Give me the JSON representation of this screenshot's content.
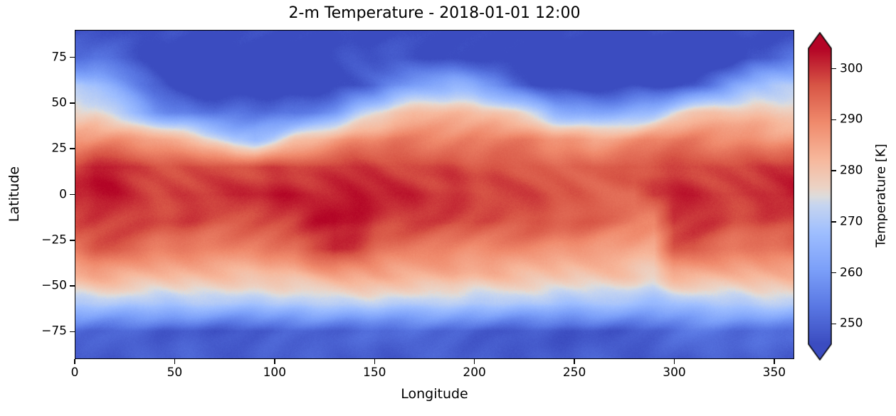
{
  "chart_data": {
    "type": "heatmap",
    "title": "2-m Temperature - 2018-01-01 12:00",
    "xlabel": "Longitude",
    "ylabel": "Latitude",
    "colorbar_label": "Temperature [K]",
    "xlim": [
      0,
      360
    ],
    "ylim": [
      -90,
      90
    ],
    "xticks": [
      0,
      50,
      100,
      150,
      200,
      250,
      300,
      350
    ],
    "yticks": [
      75,
      50,
      25,
      0,
      -25,
      -50,
      -75
    ],
    "colorbar_ticks": [
      250,
      260,
      270,
      280,
      290,
      300
    ],
    "vmin": 246,
    "vmax": 304,
    "colormap": "coolwarm",
    "extend": "both",
    "grid_lons": [
      0,
      10,
      20,
      30,
      40,
      50,
      60,
      70,
      80,
      90,
      100,
      110,
      120,
      130,
      140,
      150,
      160,
      170,
      180,
      190,
      200,
      210,
      220,
      230,
      240,
      250,
      260,
      270,
      280,
      290,
      300,
      310,
      320,
      330,
      340,
      350,
      360
    ],
    "grid_lats": [
      90,
      75,
      60,
      45,
      30,
      15,
      0,
      -15,
      -30,
      -45,
      -60,
      -75,
      -90
    ],
    "values": [
      [
        246,
        246,
        246,
        246,
        246,
        246,
        246,
        246,
        246,
        246,
        246,
        246,
        246,
        246,
        246,
        246,
        246,
        246,
        246,
        246,
        246,
        246,
        246,
        246,
        246,
        246,
        246,
        246,
        246,
        246,
        246,
        246,
        246,
        246,
        246,
        246,
        246
      ],
      [
        252,
        252,
        250,
        248,
        246,
        245,
        244,
        243,
        243,
        244,
        244,
        245,
        246,
        246,
        247,
        247,
        247,
        247,
        247,
        246,
        246,
        245,
        243,
        242,
        241,
        240,
        239,
        238,
        238,
        237,
        237,
        238,
        240,
        243,
        247,
        250,
        252
      ],
      [
        270,
        268,
        262,
        256,
        250,
        245,
        243,
        241,
        240,
        240,
        241,
        242,
        243,
        245,
        247,
        250,
        256,
        261,
        264,
        265,
        263,
        258,
        250,
        246,
        244,
        243,
        243,
        244,
        245,
        244,
        245,
        248,
        255,
        262,
        268,
        270,
        270
      ],
      [
        278,
        277,
        272,
        266,
        260,
        256,
        254,
        253,
        253,
        252,
        251,
        252,
        255,
        260,
        268,
        274,
        279,
        281,
        282,
        282,
        282,
        281,
        278,
        272,
        266,
        263,
        262,
        263,
        265,
        268,
        274,
        279,
        281,
        281,
        280,
        279,
        278
      ],
      [
        287,
        288,
        288,
        287,
        287,
        284,
        282,
        276,
        268,
        266,
        272,
        280,
        284,
        287,
        289,
        290,
        291,
        291,
        291,
        291,
        292,
        292,
        291,
        290,
        288,
        287,
        286,
        287,
        288,
        290,
        291,
        291,
        290,
        290,
        289,
        288,
        287
      ],
      [
        300,
        302,
        302,
        300,
        298,
        297,
        297,
        297,
        297,
        298,
        298,
        298,
        298,
        299,
        299,
        299,
        298,
        298,
        298,
        298,
        297,
        297,
        296,
        296,
        296,
        296,
        295,
        296,
        297,
        298,
        298,
        298,
        298,
        298,
        298,
        299,
        300
      ],
      [
        302,
        303,
        302,
        300,
        299,
        300,
        300,
        300,
        300,
        301,
        302,
        302,
        302,
        302,
        302,
        301,
        301,
        301,
        300,
        300,
        299,
        299,
        298,
        298,
        297,
        297,
        296,
        295,
        293,
        300,
        301,
        301,
        300,
        300,
        300,
        301,
        302
      ],
      [
        299,
        300,
        299,
        298,
        298,
        298,
        298,
        297,
        297,
        297,
        297,
        298,
        302,
        304,
        303,
        300,
        299,
        299,
        298,
        298,
        298,
        298,
        297,
        297,
        296,
        296,
        295,
        294,
        293,
        290,
        300,
        300,
        299,
        297,
        297,
        298,
        299
      ],
      [
        293,
        296,
        296,
        294,
        292,
        291,
        291,
        290,
        290,
        290,
        291,
        293,
        298,
        301,
        298,
        294,
        292,
        291,
        291,
        290,
        290,
        290,
        290,
        289,
        289,
        288,
        287,
        286,
        285,
        284,
        295,
        296,
        294,
        292,
        291,
        292,
        293
      ],
      [
        283,
        284,
        284,
        283,
        282,
        282,
        281,
        281,
        281,
        281,
        281,
        282,
        283,
        284,
        284,
        285,
        284,
        284,
        283,
        283,
        282,
        282,
        281,
        281,
        281,
        280,
        280,
        280,
        279,
        277,
        283,
        284,
        283,
        282,
        282,
        282,
        283
      ],
      [
        271,
        271,
        271,
        270,
        270,
        270,
        270,
        270,
        270,
        270,
        270,
        270,
        271,
        271,
        271,
        271,
        271,
        271,
        271,
        270,
        270,
        270,
        270,
        270,
        269,
        269,
        269,
        269,
        268,
        268,
        268,
        269,
        270,
        270,
        271,
        271,
        271
      ],
      [
        252,
        251,
        250,
        250,
        249,
        249,
        249,
        248,
        248,
        248,
        249,
        249,
        250,
        250,
        250,
        251,
        251,
        251,
        250,
        250,
        249,
        249,
        248,
        248,
        248,
        247,
        248,
        248,
        249,
        250,
        252,
        253,
        253,
        252,
        252,
        252,
        252
      ],
      [
        249,
        249,
        249,
        249,
        249,
        249,
        249,
        249,
        249,
        249,
        249,
        249,
        249,
        249,
        249,
        249,
        249,
        249,
        249,
        249,
        249,
        249,
        249,
        249,
        249,
        249,
        249,
        249,
        249,
        249,
        249,
        249,
        249,
        249,
        249,
        249,
        249
      ]
    ],
    "colormap_stops": [
      {
        "t": 0.0,
        "color": "#3b4cc0"
      },
      {
        "t": 0.125,
        "color": "#5977e3"
      },
      {
        "t": 0.25,
        "color": "#7b9ff9"
      },
      {
        "t": 0.375,
        "color": "#9ebeff"
      },
      {
        "t": 0.47,
        "color": "#c6d5f0"
      },
      {
        "t": 0.5,
        "color": "#dddcdc"
      },
      {
        "t": 0.53,
        "color": "#ecd3c5"
      },
      {
        "t": 0.625,
        "color": "#f7b89c"
      },
      {
        "t": 0.75,
        "color": "#f08a6c"
      },
      {
        "t": 0.875,
        "color": "#d85646"
      },
      {
        "t": 1.0,
        "color": "#b40426"
      }
    ]
  }
}
